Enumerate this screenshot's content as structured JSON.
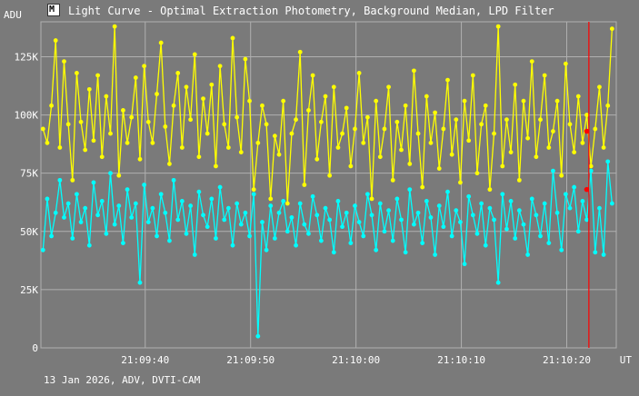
{
  "window": {
    "title": "Light Curve - Optimal Extraction Photometry, Background Median, LPD Filter",
    "icon": "chart-app-icon"
  },
  "footer": {
    "text": "13 Jan 2026, ADV, DVTI-CAM"
  },
  "colors": {
    "background": "#7a7a7a",
    "grid": "#b0b0b0",
    "series_yellow": "#ffff00",
    "series_cyan": "#00ffff",
    "cursor": "#ff0000",
    "marker": "#ff0000"
  },
  "chart_data": {
    "type": "line",
    "ylabel": "ADU",
    "xlabel": "UT",
    "ylim": [
      0,
      140000
    ],
    "xlim": [
      21.5,
      48.8
    ],
    "y_ticks": [
      {
        "value": 0,
        "label": "0"
      },
      {
        "value": 25000,
        "label": "25K"
      },
      {
        "value": 50000,
        "label": "50K"
      },
      {
        "value": 75000,
        "label": "75K"
      },
      {
        "value": 100000,
        "label": "100K"
      },
      {
        "value": 125000,
        "label": "125K"
      }
    ],
    "x_ticks": [
      {
        "value": 26.45,
        "label": "21:09:40"
      },
      {
        "value": 31.45,
        "label": "21:09:50"
      },
      {
        "value": 36.45,
        "label": "21:10:00"
      },
      {
        "value": 41.45,
        "label": "21:10:10"
      },
      {
        "value": 46.45,
        "label": "21:10:20"
      }
    ],
    "cursor_x": 47.5,
    "grid": true,
    "series": [
      {
        "color": "#ffff00",
        "x": [
          21.6,
          21.8,
          22.0,
          22.2,
          22.4,
          22.6,
          22.8,
          23.0,
          23.2,
          23.4,
          23.6,
          23.8,
          24.0,
          24.2,
          24.4,
          24.6,
          24.8,
          25.0,
          25.2,
          25.4,
          25.6,
          25.8,
          26.0,
          26.2,
          26.4,
          26.6,
          26.8,
          27.0,
          27.2,
          27.4,
          27.6,
          27.8,
          28.0,
          28.2,
          28.4,
          28.6,
          28.8,
          29.0,
          29.2,
          29.4,
          29.6,
          29.8,
          30.0,
          30.2,
          30.4,
          30.6,
          30.8,
          31.0,
          31.2,
          31.4,
          31.6,
          31.8,
          32.0,
          32.2,
          32.4,
          32.6,
          32.8,
          33.0,
          33.2,
          33.4,
          33.6,
          33.8,
          34.0,
          34.2,
          34.4,
          34.6,
          34.8,
          35.0,
          35.2,
          35.4,
          35.6,
          35.8,
          36.0,
          36.2,
          36.4,
          36.6,
          36.8,
          37.0,
          37.2,
          37.4,
          37.6,
          37.8,
          38.0,
          38.2,
          38.4,
          38.6,
          38.8,
          39.0,
          39.2,
          39.4,
          39.6,
          39.8,
          40.0,
          40.2,
          40.4,
          40.6,
          40.8,
          41.0,
          41.2,
          41.4,
          41.6,
          41.8,
          42.0,
          42.2,
          42.4,
          42.6,
          42.8,
          43.0,
          43.2,
          43.4,
          43.6,
          43.8,
          44.0,
          44.2,
          44.4,
          44.6,
          44.8,
          45.0,
          45.2,
          45.4,
          45.6,
          45.8,
          46.0,
          46.2,
          46.4,
          46.6,
          46.8,
          47.0,
          47.2,
          47.4,
          47.6,
          47.8,
          48.0,
          48.2,
          48.4,
          48.6
        ],
        "values": [
          94000,
          88000,
          104000,
          132000,
          86000,
          123000,
          96000,
          72000,
          118000,
          97000,
          85000,
          111000,
          89000,
          117000,
          82000,
          108000,
          92000,
          138000,
          74000,
          102000,
          88000,
          99000,
          116000,
          81000,
          121000,
          97000,
          88000,
          109000,
          131000,
          95000,
          79000,
          104000,
          118000,
          86000,
          112000,
          98000,
          126000,
          82000,
          107000,
          92000,
          113000,
          78000,
          121000,
          96000,
          86000,
          133000,
          99000,
          84000,
          124000,
          106000,
          68000,
          88000,
          104000,
          96000,
          64000,
          91000,
          83000,
          106000,
          62000,
          92000,
          98000,
          127000,
          70000,
          102000,
          117000,
          81000,
          97000,
          108000,
          74000,
          112000,
          86000,
          92000,
          103000,
          78000,
          94000,
          118000,
          88000,
          99000,
          64000,
          106000,
          82000,
          94000,
          112000,
          72000,
          97000,
          85000,
          104000,
          79000,
          119000,
          92000,
          69000,
          108000,
          88000,
          101000,
          77000,
          94000,
          115000,
          83000,
          98000,
          71000,
          106000,
          89000,
          117000,
          75000,
          96000,
          104000,
          68000,
          92000,
          138000,
          78000,
          98000,
          84000,
          113000,
          72000,
          106000,
          90000,
          123000,
          82000,
          98000,
          117000,
          86000,
          93000,
          106000,
          74000,
          122000,
          96000,
          84000,
          108000,
          88000,
          100000,
          78000,
          94000,
          112000,
          86000,
          104000,
          137000
        ],
        "markers": [
          {
            "x": 47.4,
            "y": 93000
          }
        ]
      },
      {
        "color": "#00ffff",
        "x": [
          21.6,
          21.8,
          22.0,
          22.2,
          22.4,
          22.6,
          22.8,
          23.0,
          23.2,
          23.4,
          23.6,
          23.8,
          24.0,
          24.2,
          24.4,
          24.6,
          24.8,
          25.0,
          25.2,
          25.4,
          25.6,
          25.8,
          26.0,
          26.2,
          26.4,
          26.6,
          26.8,
          27.0,
          27.2,
          27.4,
          27.6,
          27.8,
          28.0,
          28.2,
          28.4,
          28.6,
          28.8,
          29.0,
          29.2,
          29.4,
          29.6,
          29.8,
          30.0,
          30.2,
          30.4,
          30.6,
          30.8,
          31.0,
          31.2,
          31.4,
          31.6,
          31.8,
          32.0,
          32.2,
          32.4,
          32.6,
          32.8,
          33.0,
          33.2,
          33.4,
          33.6,
          33.8,
          34.0,
          34.2,
          34.4,
          34.6,
          34.8,
          35.0,
          35.2,
          35.4,
          35.6,
          35.8,
          36.0,
          36.2,
          36.4,
          36.6,
          36.8,
          37.0,
          37.2,
          37.4,
          37.6,
          37.8,
          38.0,
          38.2,
          38.4,
          38.6,
          38.8,
          39.0,
          39.2,
          39.4,
          39.6,
          39.8,
          40.0,
          40.2,
          40.4,
          40.6,
          40.8,
          41.0,
          41.2,
          41.4,
          41.6,
          41.8,
          42.0,
          42.2,
          42.4,
          42.6,
          42.8,
          43.0,
          43.2,
          43.4,
          43.6,
          43.8,
          44.0,
          44.2,
          44.4,
          44.6,
          44.8,
          45.0,
          45.2,
          45.4,
          45.6,
          45.8,
          46.0,
          46.2,
          46.4,
          46.6,
          46.8,
          47.0,
          47.2,
          47.4,
          47.6,
          47.8,
          48.0,
          48.2,
          48.4,
          48.6
        ],
        "values": [
          42000,
          64000,
          48000,
          58000,
          72000,
          56000,
          62000,
          47000,
          66000,
          54000,
          60000,
          44000,
          71000,
          57000,
          63000,
          49000,
          75000,
          53000,
          61000,
          45000,
          68000,
          56000,
          62000,
          28000,
          70000,
          54000,
          60000,
          48000,
          66000,
          58000,
          46000,
          72000,
          55000,
          63000,
          49000,
          61000,
          40000,
          67000,
          57000,
          52000,
          64000,
          47000,
          69000,
          55000,
          60000,
          44000,
          62000,
          53000,
          58000,
          48000,
          66000,
          5000,
          54000,
          42000,
          61000,
          47000,
          58000,
          63000,
          50000,
          56000,
          44000,
          62000,
          53000,
          49000,
          65000,
          57000,
          46000,
          60000,
          55000,
          41000,
          63000,
          52000,
          58000,
          45000,
          61000,
          54000,
          48000,
          66000,
          57000,
          42000,
          62000,
          50000,
          59000,
          46000,
          64000,
          55000,
          41000,
          68000,
          53000,
          58000,
          45000,
          63000,
          56000,
          40000,
          61000,
          52000,
          67000,
          48000,
          59000,
          54000,
          36000,
          65000,
          57000,
          49000,
          62000,
          44000,
          60000,
          55000,
          28000,
          66000,
          51000,
          63000,
          47000,
          59000,
          53000,
          40000,
          64000,
          57000,
          48000,
          62000,
          45000,
          76000,
          58000,
          42000,
          66000,
          60000,
          69000,
          50000,
          63000,
          55000,
          76000,
          41000,
          60000,
          40000,
          80000,
          62000
        ],
        "markers": [
          {
            "x": 47.4,
            "y": 68000
          }
        ]
      }
    ]
  }
}
